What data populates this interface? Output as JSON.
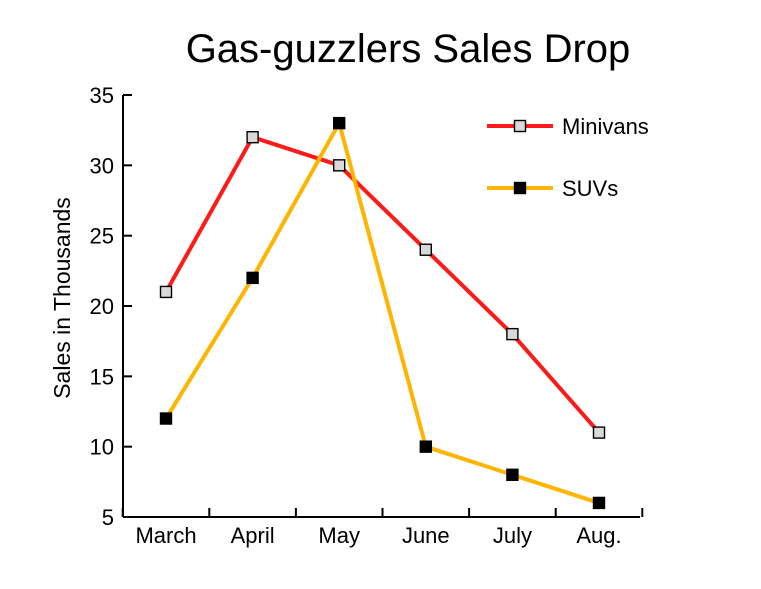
{
  "chart_data": {
    "type": "line",
    "title": "Gas-guzzlers Sales Drop",
    "xlabel": "",
    "ylabel": "Sales in Thousands",
    "categories": [
      "March",
      "April",
      "May",
      "June",
      "July",
      "Aug."
    ],
    "ylim": [
      5,
      35
    ],
    "yticks": [
      5,
      10,
      15,
      20,
      25,
      30,
      35
    ],
    "grid": false,
    "legend_position": "top-right",
    "series": [
      {
        "name": "Minivans",
        "values": [
          21,
          32,
          30,
          24,
          18,
          11
        ],
        "color": "#ff1a1a",
        "marker": "open-square"
      },
      {
        "name": "SUVs",
        "values": [
          12,
          22,
          33,
          10,
          8,
          6
        ],
        "color": "#ffb400",
        "marker": "filled-square"
      }
    ]
  }
}
